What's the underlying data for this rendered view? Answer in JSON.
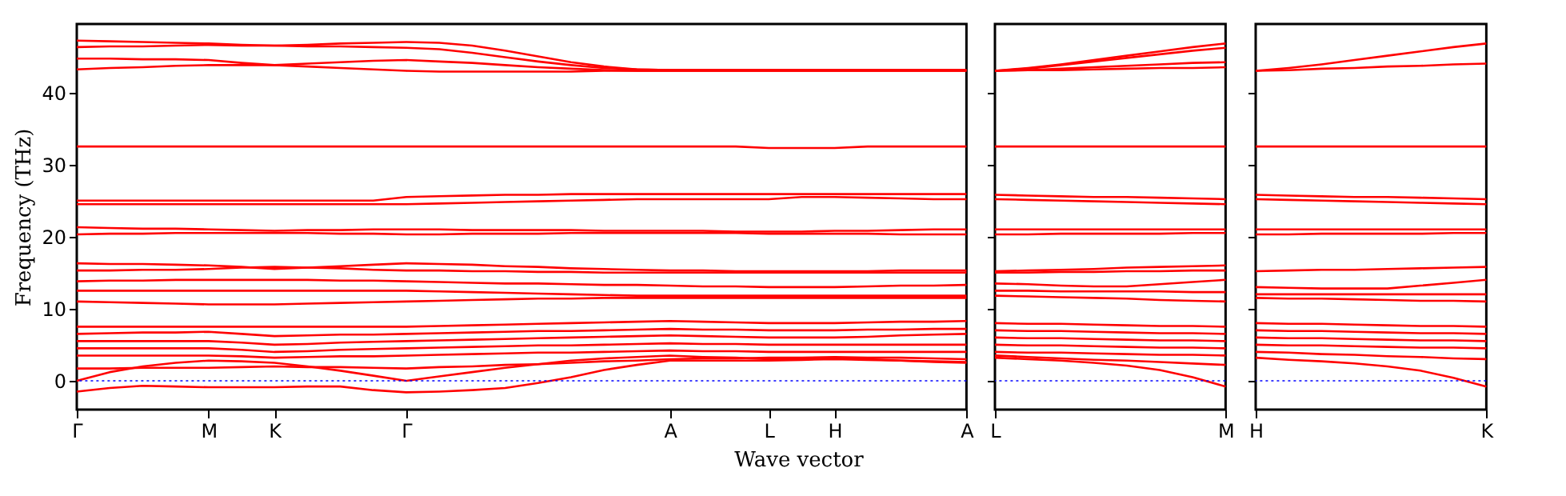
{
  "chart_data": [
    {
      "type": "line",
      "xlabel": "Wave vector",
      "ylabel": "Frequency (THz)",
      "ylim": [
        -4,
        49.5
      ],
      "categories": [
        "Γ",
        null,
        null,
        null,
        "M",
        null,
        "K",
        null,
        null,
        null,
        "Γ",
        null,
        null,
        null,
        null,
        null,
        null,
        null,
        "A",
        null,
        null,
        "L",
        null,
        "H",
        null,
        null,
        null,
        "A"
      ],
      "yticks": [
        0,
        10,
        20,
        30,
        40
      ],
      "grid": false,
      "legend": false,
      "line_style": "solid",
      "marker": "none",
      "ref_lines": [
        {
          "axis": "y",
          "value": 0,
          "color": "#0000ff",
          "line_style": "dotted"
        }
      ],
      "series": [
        {
          "color": "#ff0000",
          "values": [
            47.2,
            47.1,
            47.0,
            46.9,
            46.8,
            46.6,
            46.5,
            46.6,
            46.8,
            46.9,
            47.0,
            46.9,
            46.5,
            45.8,
            45.0,
            44.2,
            43.6,
            43.2,
            43.1,
            43.1,
            43.1,
            43.1,
            43.1,
            43.1,
            43.1,
            43.1,
            43.1,
            43.1
          ]
        },
        {
          "color": "#ff0000",
          "values": [
            46.3,
            46.4,
            46.4,
            46.5,
            46.6,
            46.5,
            46.5,
            46.4,
            46.4,
            46.3,
            46.2,
            46.0,
            45.5,
            44.9,
            44.3,
            43.8,
            43.4,
            43.2,
            43.1,
            43.1,
            43.1,
            43.1,
            43.1,
            43.1,
            43.1,
            43.1,
            43.1,
            43.1
          ]
        },
        {
          "color": "#ff0000",
          "values": [
            44.7,
            44.7,
            44.6,
            44.6,
            44.5,
            44.1,
            43.8,
            44.0,
            44.2,
            44.4,
            44.5,
            44.3,
            44.1,
            43.8,
            43.5,
            43.3,
            43.1,
            43.0,
            43.0,
            43.0,
            43.0,
            43.0,
            43.0,
            43.0,
            43.0,
            43.0,
            43.0,
            43.0
          ]
        },
        {
          "color": "#ff0000",
          "values": [
            43.2,
            43.4,
            43.5,
            43.7,
            43.8,
            43.8,
            43.8,
            43.6,
            43.4,
            43.2,
            43.0,
            42.9,
            42.9,
            42.9,
            42.9,
            42.9,
            43.0,
            43.0,
            43.0,
            43.0,
            43.0,
            43.0,
            43.0,
            43.0,
            43.0,
            43.0,
            43.0,
            43.0
          ]
        },
        {
          "color": "#ff0000",
          "values": [
            32.5,
            32.5,
            32.5,
            32.5,
            32.5,
            32.5,
            32.5,
            32.5,
            32.5,
            32.5,
            32.5,
            32.5,
            32.5,
            32.5,
            32.5,
            32.5,
            32.5,
            32.5,
            32.5,
            32.5,
            32.5,
            32.3,
            32.3,
            32.3,
            32.5,
            32.5,
            32.5,
            32.5
          ]
        },
        {
          "color": "#ff0000",
          "values": [
            25.0,
            25.0,
            25.0,
            25.0,
            25.0,
            25.0,
            25.0,
            25.0,
            25.0,
            25.0,
            25.5,
            25.6,
            25.7,
            25.8,
            25.8,
            25.9,
            25.9,
            25.9,
            25.9,
            25.9,
            25.9,
            25.9,
            25.9,
            25.9,
            25.9,
            25.9,
            25.9,
            25.9
          ]
        },
        {
          "color": "#ff0000",
          "values": [
            24.5,
            24.5,
            24.5,
            24.5,
            24.5,
            24.5,
            24.5,
            24.5,
            24.5,
            24.5,
            24.5,
            24.6,
            24.7,
            24.8,
            24.9,
            25.0,
            25.1,
            25.2,
            25.2,
            25.2,
            25.2,
            25.2,
            25.5,
            25.5,
            25.4,
            25.3,
            25.2,
            25.2
          ]
        },
        {
          "color": "#ff0000",
          "values": [
            21.3,
            21.2,
            21.1,
            21.1,
            21.0,
            20.9,
            20.8,
            20.9,
            20.9,
            21.0,
            21.0,
            21.0,
            20.9,
            20.9,
            20.9,
            20.9,
            20.8,
            20.8,
            20.8,
            20.8,
            20.7,
            20.7,
            20.7,
            20.8,
            20.8,
            20.9,
            21.0,
            21.0
          ]
        },
        {
          "color": "#ff0000",
          "values": [
            20.3,
            20.4,
            20.4,
            20.5,
            20.5,
            20.5,
            20.5,
            20.5,
            20.4,
            20.4,
            20.3,
            20.3,
            20.4,
            20.4,
            20.4,
            20.5,
            20.5,
            20.5,
            20.5,
            20.5,
            20.5,
            20.4,
            20.4,
            20.4,
            20.4,
            20.3,
            20.3,
            20.3
          ]
        },
        {
          "color": "#ff0000",
          "values": [
            16.3,
            16.2,
            16.2,
            16.1,
            16.0,
            15.8,
            15.5,
            15.7,
            15.9,
            16.1,
            16.3,
            16.2,
            16.1,
            15.9,
            15.8,
            15.6,
            15.5,
            15.4,
            15.3,
            15.3,
            15.2,
            15.2,
            15.2,
            15.2,
            15.2,
            15.3,
            15.3,
            15.3
          ]
        },
        {
          "color": "#ff0000",
          "values": [
            15.3,
            15.3,
            15.4,
            15.4,
            15.5,
            15.7,
            15.8,
            15.7,
            15.6,
            15.4,
            15.3,
            15.3,
            15.2,
            15.2,
            15.1,
            15.1,
            15.0,
            15.0,
            15.0,
            15.0,
            15.0,
            15.0,
            15.0,
            15.0,
            15.0,
            15.0,
            15.0,
            15.0
          ]
        },
        {
          "color": "#ff0000",
          "values": [
            13.8,
            13.9,
            13.9,
            14.0,
            14.0,
            14.0,
            14.0,
            14.0,
            13.9,
            13.9,
            13.8,
            13.7,
            13.6,
            13.5,
            13.5,
            13.4,
            13.3,
            13.3,
            13.2,
            13.1,
            13.1,
            13.0,
            13.0,
            13.0,
            13.1,
            13.2,
            13.2,
            13.3
          ]
        },
        {
          "color": "#ff0000",
          "values": [
            12.5,
            12.5,
            12.5,
            12.5,
            12.5,
            12.5,
            12.5,
            12.5,
            12.5,
            12.5,
            12.5,
            12.4,
            12.3,
            12.2,
            12.1,
            12.0,
            11.9,
            11.8,
            11.8,
            11.8,
            11.8,
            11.8,
            11.8,
            11.8,
            11.8,
            11.8,
            11.8,
            11.8
          ]
        },
        {
          "color": "#ff0000",
          "values": [
            11.0,
            10.9,
            10.8,
            10.7,
            10.6,
            10.6,
            10.6,
            10.7,
            10.8,
            10.9,
            11.0,
            11.1,
            11.2,
            11.3,
            11.4,
            11.4,
            11.5,
            11.5,
            11.5,
            11.5,
            11.5,
            11.5,
            11.5,
            11.5,
            11.5,
            11.5,
            11.5,
            11.5
          ]
        },
        {
          "color": "#ff0000",
          "values": [
            7.5,
            7.5,
            7.5,
            7.5,
            7.5,
            7.5,
            7.5,
            7.5,
            7.5,
            7.5,
            7.5,
            7.6,
            7.7,
            7.8,
            7.9,
            8.0,
            8.1,
            8.2,
            8.3,
            8.2,
            8.1,
            8.0,
            8.0,
            8.0,
            8.1,
            8.2,
            8.2,
            8.3
          ]
        },
        {
          "color": "#ff0000",
          "values": [
            6.5,
            6.6,
            6.7,
            6.7,
            6.8,
            6.5,
            6.2,
            6.3,
            6.4,
            6.4,
            6.5,
            6.6,
            6.7,
            6.8,
            6.9,
            6.9,
            7.0,
            7.1,
            7.2,
            7.1,
            7.1,
            7.0,
            7.0,
            7.0,
            7.1,
            7.1,
            7.2,
            7.2
          ]
        },
        {
          "color": "#ff0000",
          "values": [
            5.5,
            5.5,
            5.5,
            5.5,
            5.5,
            5.3,
            5.0,
            5.1,
            5.3,
            5.4,
            5.5,
            5.6,
            5.7,
            5.8,
            5.9,
            6.0,
            6.1,
            6.2,
            6.3,
            6.2,
            6.1,
            6.0,
            6.0,
            6.0,
            6.1,
            6.3,
            6.4,
            6.5
          ]
        },
        {
          "color": "#ff0000",
          "values": [
            4.5,
            4.5,
            4.5,
            4.5,
            4.5,
            4.3,
            4.0,
            4.1,
            4.3,
            4.4,
            4.5,
            4.6,
            4.7,
            4.8,
            4.9,
            4.9,
            5.0,
            5.1,
            5.2,
            5.1,
            5.1,
            5.0,
            5.0,
            5.0,
            5.0,
            5.0,
            5.0,
            5.0
          ]
        },
        {
          "color": "#ff0000",
          "values": [
            3.5,
            3.5,
            3.5,
            3.5,
            3.5,
            3.4,
            3.2,
            3.3,
            3.4,
            3.4,
            3.5,
            3.6,
            3.7,
            3.8,
            3.9,
            3.9,
            4.0,
            4.1,
            4.2,
            4.1,
            4.1,
            4.0,
            4.0,
            4.0,
            4.0,
            4.0,
            4.0,
            4.0
          ]
        },
        {
          "color": "#ff0000",
          "values": [
            1.7,
            1.7,
            1.8,
            1.8,
            1.8,
            1.9,
            2.0,
            1.9,
            1.9,
            1.8,
            1.7,
            1.9,
            2.0,
            2.2,
            2.3,
            2.5,
            2.7,
            2.8,
            3.0,
            3.1,
            3.1,
            3.2,
            3.2,
            3.3,
            3.2,
            3.2,
            3.1,
            3.0
          ]
        },
        {
          "color": "#ff0000",
          "values": [
            0,
            1.2,
            2.0,
            2.5,
            2.8,
            2.7,
            2.5,
            2.0,
            1.4,
            0.7,
            0,
            0.6,
            1.2,
            1.8,
            2.3,
            2.8,
            3.1,
            3.3,
            3.5,
            3.3,
            3.2,
            3.0,
            3.1,
            3.2,
            3.0,
            2.8,
            2.6,
            2.5
          ]
        },
        {
          "color": "#ff0000",
          "values": [
            -1.5,
            -1.0,
            -0.7,
            -0.8,
            -0.9,
            -0.9,
            -0.9,
            -0.8,
            -0.8,
            -1.3,
            -1.6,
            -1.5,
            -1.3,
            -1.0,
            -0.3,
            0.5,
            1.5,
            2.2,
            2.8,
            2.8,
            2.8,
            2.8,
            2.9,
            3.0,
            2.9,
            2.8,
            2.7,
            2.6
          ]
        }
      ]
    },
    {
      "type": "line",
      "ylim": [
        -4,
        49.5
      ],
      "categories": [
        "L",
        null,
        null,
        null,
        null,
        null,
        null,
        "M"
      ],
      "yticks": [
        0,
        10,
        20,
        30,
        40
      ],
      "tick_labels": "x",
      "grid": false,
      "legend": false,
      "line_style": "solid",
      "marker": "none",
      "ref_lines": [
        {
          "axis": "y",
          "value": 0,
          "color": "#0000ff",
          "line_style": "dotted"
        }
      ],
      "series": [
        {
          "color": "#ff0000",
          "values": [
            43.0,
            43.4,
            43.9,
            44.5,
            45.1,
            45.7,
            46.3,
            46.8
          ]
        },
        {
          "color": "#ff0000",
          "values": [
            43.0,
            43.3,
            43.8,
            44.3,
            44.8,
            45.3,
            45.8,
            46.2
          ]
        },
        {
          "color": "#ff0000",
          "values": [
            43.0,
            43.1,
            43.3,
            43.5,
            43.7,
            43.9,
            44.1,
            44.2
          ]
        },
        {
          "color": "#ff0000",
          "values": [
            43.0,
            43.1,
            43.1,
            43.2,
            43.3,
            43.4,
            43.4,
            43.5
          ]
        },
        {
          "color": "#ff0000",
          "values": [
            32.5,
            32.5,
            32.5,
            32.5,
            32.5,
            32.5,
            32.5,
            32.5
          ]
        },
        {
          "color": "#ff0000",
          "values": [
            25.8,
            25.7,
            25.6,
            25.5,
            25.5,
            25.4,
            25.3,
            25.2
          ]
        },
        {
          "color": "#ff0000",
          "values": [
            25.2,
            25.1,
            25.0,
            24.9,
            24.8,
            24.7,
            24.6,
            24.5
          ]
        },
        {
          "color": "#ff0000",
          "values": [
            21.0,
            21.0,
            21.0,
            21.0,
            21.0,
            21.0,
            21.0,
            21.0
          ]
        },
        {
          "color": "#ff0000",
          "values": [
            20.3,
            20.3,
            20.4,
            20.4,
            20.4,
            20.4,
            20.5,
            20.5
          ]
        },
        {
          "color": "#ff0000",
          "values": [
            15.2,
            15.3,
            15.4,
            15.5,
            15.7,
            15.8,
            15.9,
            16.0
          ]
        },
        {
          "color": "#ff0000",
          "values": [
            15.0,
            15.0,
            15.1,
            15.1,
            15.2,
            15.2,
            15.3,
            15.3
          ]
        },
        {
          "color": "#ff0000",
          "values": [
            13.5,
            13.4,
            13.2,
            13.1,
            13.1,
            13.4,
            13.7,
            14.0
          ]
        },
        {
          "color": "#ff0000",
          "values": [
            12.5,
            12.5,
            12.4,
            12.4,
            12.4,
            12.4,
            12.3,
            12.3
          ]
        },
        {
          "color": "#ff0000",
          "values": [
            11.8,
            11.7,
            11.6,
            11.5,
            11.4,
            11.2,
            11.1,
            11.0
          ]
        },
        {
          "color": "#ff0000",
          "values": [
            8.0,
            7.9,
            7.9,
            7.8,
            7.7,
            7.6,
            7.6,
            7.5
          ]
        },
        {
          "color": "#ff0000",
          "values": [
            7.0,
            6.9,
            6.9,
            6.8,
            6.7,
            6.6,
            6.6,
            6.5
          ]
        },
        {
          "color": "#ff0000",
          "values": [
            6.0,
            5.9,
            5.9,
            5.8,
            5.7,
            5.6,
            5.6,
            5.5
          ]
        },
        {
          "color": "#ff0000",
          "values": [
            5.0,
            4.9,
            4.9,
            4.8,
            4.7,
            4.6,
            4.6,
            4.5
          ]
        },
        {
          "color": "#ff0000",
          "values": [
            4.0,
            3.9,
            3.9,
            3.8,
            3.7,
            3.6,
            3.6,
            3.5
          ]
        },
        {
          "color": "#ff0000",
          "values": [
            3.5,
            3.3,
            3.1,
            2.9,
            2.8,
            2.6,
            2.4,
            2.2
          ]
        },
        {
          "color": "#ff0000",
          "values": [
            3.2,
            3.0,
            2.8,
            2.5,
            2.1,
            1.5,
            0.5,
            -0.8
          ]
        }
      ]
    },
    {
      "type": "line",
      "ylim": [
        -4,
        49.5
      ],
      "categories": [
        "H",
        null,
        null,
        null,
        null,
        null,
        null,
        "K"
      ],
      "yticks": [
        0,
        10,
        20,
        30,
        40
      ],
      "tick_labels": "x",
      "grid": false,
      "legend": false,
      "line_style": "solid",
      "marker": "none",
      "ref_lines": [
        {
          "axis": "y",
          "value": 0,
          "color": "#0000ff",
          "line_style": "dotted"
        }
      ],
      "series": [
        {
          "color": "#ff0000",
          "values": [
            43.0,
            43.4,
            43.9,
            44.5,
            45.1,
            45.7,
            46.3,
            46.8
          ]
        },
        {
          "color": "#ff0000",
          "values": [
            43.0,
            43.1,
            43.3,
            43.4,
            43.6,
            43.7,
            43.9,
            44.0
          ]
        },
        {
          "color": "#ff0000",
          "values": [
            32.5,
            32.5,
            32.5,
            32.5,
            32.5,
            32.5,
            32.5,
            32.5
          ]
        },
        {
          "color": "#ff0000",
          "values": [
            25.8,
            25.7,
            25.6,
            25.5,
            25.5,
            25.4,
            25.3,
            25.2
          ]
        },
        {
          "color": "#ff0000",
          "values": [
            25.2,
            25.1,
            25.0,
            24.9,
            24.8,
            24.7,
            24.6,
            24.5
          ]
        },
        {
          "color": "#ff0000",
          "values": [
            21.0,
            21.0,
            21.0,
            21.0,
            21.0,
            21.0,
            21.0,
            21.0
          ]
        },
        {
          "color": "#ff0000",
          "values": [
            20.3,
            20.3,
            20.4,
            20.4,
            20.4,
            20.4,
            20.5,
            20.5
          ]
        },
        {
          "color": "#ff0000",
          "values": [
            15.2,
            15.3,
            15.4,
            15.4,
            15.5,
            15.6,
            15.7,
            15.8
          ]
        },
        {
          "color": "#ff0000",
          "values": [
            13.0,
            12.9,
            12.8,
            12.8,
            12.8,
            13.2,
            13.6,
            14.0
          ]
        },
        {
          "color": "#ff0000",
          "values": [
            12.0,
            12.0,
            12.0,
            12.0,
            12.0,
            12.0,
            12.0,
            12.0
          ]
        },
        {
          "color": "#ff0000",
          "values": [
            11.5,
            11.4,
            11.4,
            11.3,
            11.2,
            11.1,
            11.1,
            11.0
          ]
        },
        {
          "color": "#ff0000",
          "values": [
            8.0,
            7.9,
            7.9,
            7.8,
            7.7,
            7.6,
            7.6,
            7.5
          ]
        },
        {
          "color": "#ff0000",
          "values": [
            7.0,
            6.9,
            6.9,
            6.8,
            6.7,
            6.6,
            6.6,
            6.5
          ]
        },
        {
          "color": "#ff0000",
          "values": [
            6.0,
            5.9,
            5.9,
            5.8,
            5.7,
            5.6,
            5.6,
            5.5
          ]
        },
        {
          "color": "#ff0000",
          "values": [
            5.0,
            4.9,
            4.9,
            4.8,
            4.7,
            4.6,
            4.6,
            4.5
          ]
        },
        {
          "color": "#ff0000",
          "values": [
            4.0,
            3.9,
            3.7,
            3.6,
            3.4,
            3.3,
            3.1,
            3.0
          ]
        },
        {
          "color": "#ff0000",
          "values": [
            3.2,
            2.9,
            2.7,
            2.4,
            2.0,
            1.4,
            0.4,
            -0.8
          ]
        }
      ]
    }
  ]
}
